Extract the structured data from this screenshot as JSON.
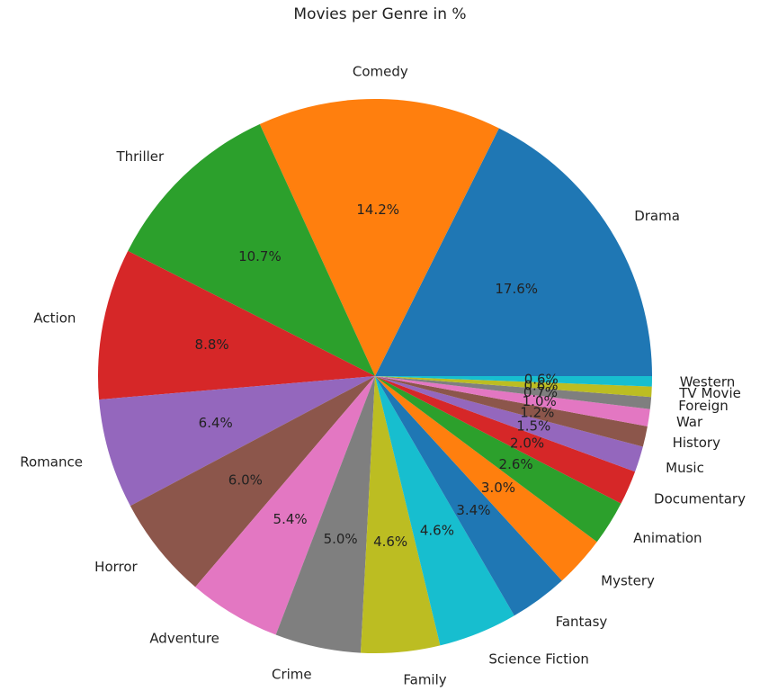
{
  "chart_data": {
    "type": "pie",
    "title": "Movies per Genre in %",
    "labels": [
      "Drama",
      "Comedy",
      "Thriller",
      "Action",
      "Romance",
      "Horror",
      "Adventure",
      "Crime",
      "Family",
      "Science Fiction",
      "Fantasy",
      "Mystery",
      "Animation",
      "Documentary",
      "Music",
      "History",
      "War",
      "Foreign",
      "TV Movie",
      "Western"
    ],
    "values": [
      17.6,
      14.2,
      10.7,
      8.8,
      6.4,
      6.0,
      5.4,
      5.0,
      4.6,
      4.6,
      3.4,
      3.0,
      2.6,
      2.0,
      1.5,
      1.2,
      1.0,
      0.7,
      0.6,
      0.6
    ],
    "value_labels": [
      "17.6%",
      "14.2%",
      "10.7%",
      "8.8%",
      "6.4%",
      "6.0%",
      "5.4%",
      "5.0%",
      "4.6%",
      "4.6%",
      "3.4%",
      "3.0%",
      "2.6%",
      "2.0%",
      "1.5%",
      "1.2%",
      "1.0%",
      "0.7%",
      "0.6%",
      "0.6%"
    ],
    "colors": [
      "#1f77b4",
      "#ff7f0e",
      "#2ca02c",
      "#d62728",
      "#9467bd",
      "#8c564b",
      "#e377c2",
      "#7f7f7f",
      "#bcbd22",
      "#17becf",
      "#1f77b4",
      "#ff7f0e",
      "#2ca02c",
      "#d62728",
      "#9467bd",
      "#8c564b",
      "#e377c2",
      "#7f7f7f",
      "#bcbd22",
      "#17becf"
    ],
    "start_angle_deg": 0,
    "direction": "counterclockwise",
    "legend": "none"
  }
}
